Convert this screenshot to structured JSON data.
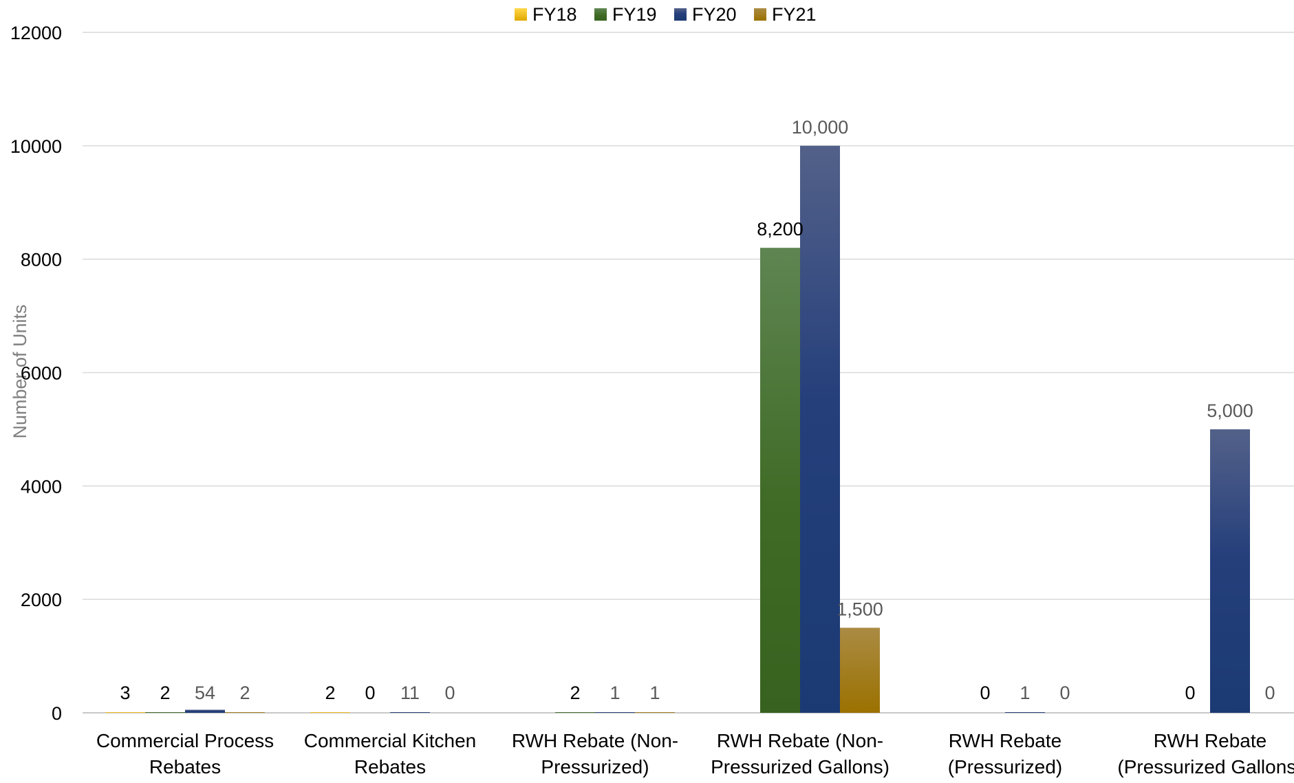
{
  "chart_data": {
    "type": "bar",
    "title": "",
    "xlabel": "",
    "ylabel": "Number of Units",
    "ylim": [
      0,
      12000
    ],
    "yticks": [
      0,
      2000,
      4000,
      6000,
      8000,
      10000,
      12000
    ],
    "grid": true,
    "legend_position": "top-center",
    "categories": [
      [
        "Commercial Process",
        "Rebates"
      ],
      [
        "Commercial Kitchen",
        "Rebates"
      ],
      [
        "RWH Rebate (Non-",
        "Pressurized)"
      ],
      [
        "RWH Rebate (Non-",
        "Pressurized Gallons)"
      ],
      [
        "RWH Rebate",
        "(Pressurized)"
      ],
      [
        "RWH Rebate",
        "(Pressurized Gallons)"
      ]
    ],
    "series": [
      {
        "name": "FY18",
        "color": "#f5c000",
        "values": [
          3,
          2,
          null,
          null,
          null,
          null
        ],
        "labels": [
          "3",
          "2",
          "",
          "",
          "",
          ""
        ]
      },
      {
        "name": "FY19",
        "color": "#3e6b26",
        "values": [
          2,
          0,
          2,
          8200,
          0,
          0
        ],
        "labels": [
          "2",
          "0",
          "2",
          "8,200",
          "0",
          "0"
        ]
      },
      {
        "name": "FY20",
        "color": "#243f7a",
        "values": [
          54,
          11,
          1,
          10000,
          1,
          5000
        ],
        "labels": [
          "54",
          "11",
          "1",
          "10,000",
          "1",
          "5,000"
        ]
      },
      {
        "name": "FY21",
        "color": "#a87c14",
        "values": [
          2,
          0,
          1,
          1500,
          0,
          0
        ],
        "labels": [
          "2",
          "0",
          "1",
          "1,500",
          "0",
          "0"
        ]
      }
    ]
  }
}
